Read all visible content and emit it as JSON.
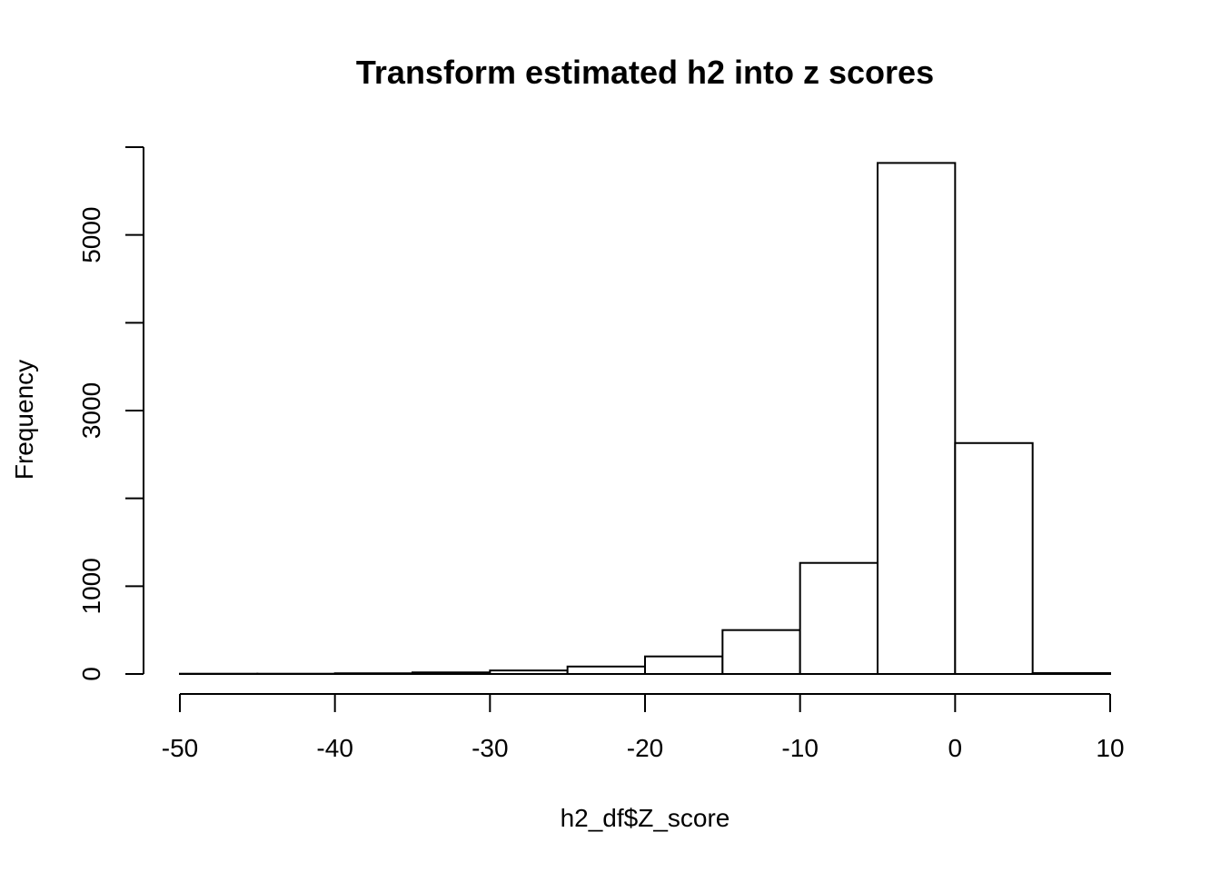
{
  "chart_data": {
    "type": "bar",
    "title": "Transform estimated h2 into z scores",
    "xlabel": "h2_df$Z_score",
    "ylabel": "Frequency",
    "bin_edges": [
      -50,
      -45,
      -40,
      -35,
      -30,
      -25,
      -20,
      -15,
      -10,
      -5,
      0,
      5,
      10
    ],
    "values": [
      3,
      3,
      8,
      18,
      40,
      85,
      200,
      500,
      1265,
      5820,
      2630,
      10
    ],
    "xlim": [
      -50,
      10
    ],
    "ylim": [
      0,
      6000
    ],
    "x_ticks": [
      -50,
      -40,
      -30,
      -20,
      -10,
      0,
      10
    ],
    "y_ticks": [
      0,
      1000,
      2000,
      3000,
      4000,
      5000,
      6000
    ],
    "y_tick_labels": [
      "0",
      "1000",
      "",
      "3000",
      "",
      "5000",
      ""
    ],
    "grid": false,
    "legend": "none"
  }
}
